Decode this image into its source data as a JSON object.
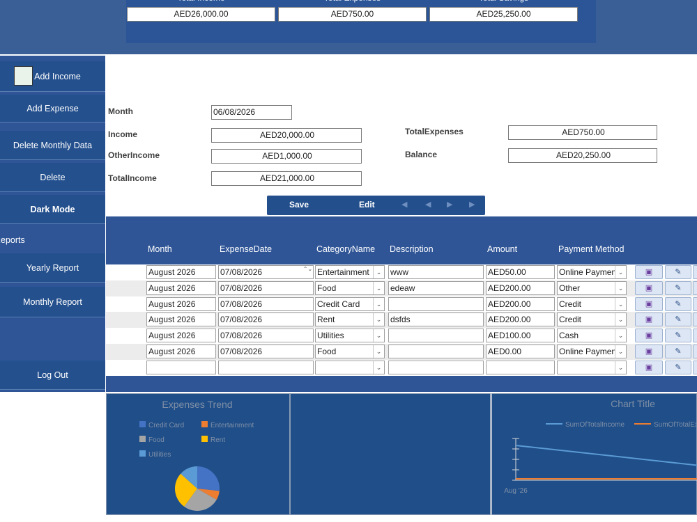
{
  "summary": {
    "headers": [
      "Total Income",
      "Total Expenses",
      "Total Savings"
    ],
    "values": [
      "AED26,000.00",
      "AED750.00",
      "AED25,250.00"
    ]
  },
  "sidebar": {
    "buttons": [
      "Add Income",
      "Add Expense",
      "Delete Monthly Data",
      "Delete",
      "Dark Mode",
      "Reports",
      "Yearly Report",
      "Monthly Report",
      "Log Out"
    ]
  },
  "form": {
    "fields": [
      {
        "label": "Month",
        "value": "06/08/2026"
      },
      {
        "label": "Income",
        "value": "AED20,000.00"
      },
      {
        "label": "OtherIncome",
        "value": "AED1,000.00"
      },
      {
        "label": "TotalIncome",
        "value": "AED21,000.00"
      },
      {
        "label": "TotalExpenses",
        "value": "AED750.00"
      },
      {
        "label": "Balance",
        "value": "AED20,250.00"
      }
    ]
  },
  "toolbar": {
    "save": "Save",
    "edit": "Edit"
  },
  "grid": {
    "columns": [
      "Month",
      "ExpenseDate",
      "CategoryName",
      "Description",
      "Amount",
      "Payment Method"
    ],
    "rows": [
      [
        "August 2026",
        "07/08/2026",
        "Entertainment",
        "www",
        "AED50.00",
        "Online Payment"
      ],
      [
        "August 2026",
        "07/08/2026",
        "Food",
        "edeaw",
        "AED200.00",
        "Other"
      ],
      [
        "August 2026",
        "07/08/2026",
        "Credit Card",
        null,
        "AED200.00",
        "Credit"
      ],
      [
        "August 2026",
        "07/08/2026",
        "Rent",
        "dsfds",
        "AED200.00",
        "Credit"
      ],
      [
        "August 2026",
        "07/08/2026",
        "Utilities",
        null,
        "AED100.00",
        "Cash"
      ],
      [
        "August 2026",
        "07/08/2026",
        "Food",
        null,
        "AED0.00",
        "Online Payment"
      ]
    ]
  },
  "charts": [
    {
      "type": "pie",
      "title": "Expenses Trend",
      "categories": [
        "Credit Card",
        "Entertainment",
        "Food",
        "Rent",
        "Utilities"
      ],
      "values": [
        200,
        50,
        200,
        200,
        100
      ],
      "colors": [
        "#4472c4",
        "#ed7d31",
        "#a5a5a5",
        "#ffc000",
        "#5b9bd5"
      ]
    },
    {
      "type": "line",
      "title": "Chart Title",
      "categories": [
        "Aug '26"
      ],
      "series": [
        {
          "name": "SumOfTotalIncome",
          "color": "#5b9bd5"
        },
        {
          "name": "SumOfTotalExpenses",
          "color": "#ed7d31"
        }
      ]
    }
  ]
}
